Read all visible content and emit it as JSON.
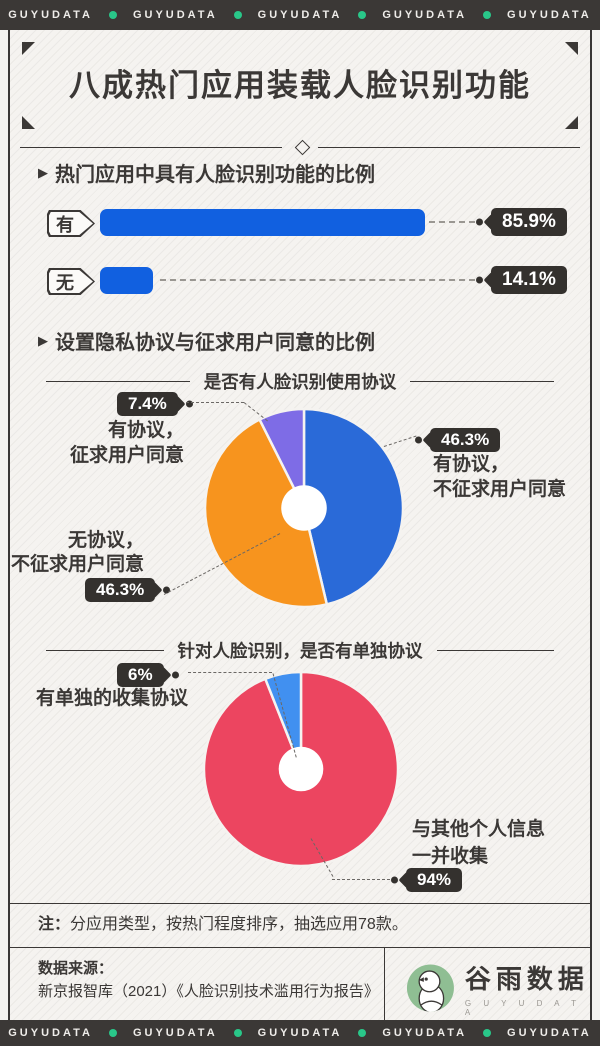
{
  "banner": {
    "brand": "GUYUDATA"
  },
  "header": {
    "title": "八成热门应用装载人脸识别功能"
  },
  "section1": {
    "heading": "热门应用中具有人脸识别功能的比例"
  },
  "section2": {
    "heading": "设置隐私协议与征求用户同意的比例"
  },
  "chart_data": [
    {
      "type": "bar",
      "title": "热门应用中具有人脸识别功能的比例",
      "categories": [
        "有",
        "无"
      ],
      "values": [
        85.9,
        14.1
      ],
      "value_labels": [
        "85.9%",
        "14.1%"
      ],
      "bar_color": "#1160E0",
      "xlim": [
        0,
        100
      ],
      "orientation": "horizontal",
      "grid": false
    },
    {
      "type": "pie",
      "title": "是否有人脸识别使用协议",
      "donut_hole_ratio": 0.23,
      "start_angle_deg": 0,
      "clockwise": true,
      "slices": [
        {
          "name": "有协议，不征求用户同意",
          "value": 46.3,
          "display": "46.3%",
          "color": "#2A6AD8",
          "label_lines": [
            "有协议，",
            "不征求用户同意"
          ]
        },
        {
          "name": "无协议，不征求用户同意",
          "value": 46.3,
          "display": "46.3%",
          "color": "#F7941E",
          "label_lines": [
            "无协议，",
            "不征求用户同意"
          ]
        },
        {
          "name": "有协议，征求用户同意",
          "value": 7.4,
          "display": "7.4%",
          "color": "#7E6CE6",
          "label_lines": [
            "有协议，",
            "征求用户同意"
          ]
        }
      ]
    },
    {
      "type": "pie",
      "title": "针对人脸识别，是否有单独协议",
      "donut_hole_ratio": 0.23,
      "start_angle_deg": 0,
      "clockwise": true,
      "slices": [
        {
          "name": "与其他个人信息一并收集",
          "value": 94,
          "display": "94%",
          "color": "#EC4560",
          "label_lines": [
            "与其他个人信息",
            "一并收集"
          ]
        },
        {
          "name": "有单独的收集协议",
          "value": 6,
          "display": "6%",
          "color": "#4190F0",
          "label_lines": [
            "有单独的收集协议"
          ]
        }
      ]
    }
  ],
  "note": {
    "prefix": "注：",
    "text": "分应用类型，按热门程度排序，抽选应用78款。"
  },
  "footer": {
    "source_label": "数据来源：",
    "source_text": "新京报智库（2021）《人脸识别技术滥用行为报告》",
    "logo_text": "谷雨数据",
    "logo_subtext": "G U Y U D A T A"
  },
  "colors": {
    "banner_bg": "#3B3836",
    "accent_green": "#29C789",
    "bar_blue": "#1160E0",
    "pie1_blue": "#2A6AD8",
    "pie1_orange": "#F7941E",
    "pie1_purple": "#7E6CE6",
    "pie2_red": "#EC4560",
    "pie2_blue": "#4190F0",
    "tag_dark": "#34312E",
    "logo_green": "#8FBE93"
  }
}
